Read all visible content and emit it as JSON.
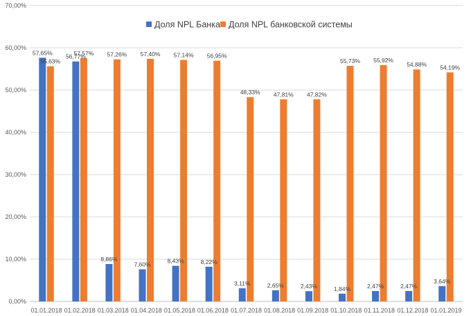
{
  "chart_data": {
    "type": "bar",
    "categories": [
      "01.01.2018",
      "01.02.2018",
      "01.03.2018",
      "01.04.2018",
      "01.05.2018",
      "01.06.2018",
      "01.07.2018",
      "01.08.2018",
      "01.09.2018",
      "01.10.2018",
      "01.11.2018",
      "01.12.2018",
      "01.01.2019"
    ],
    "series": [
      {
        "name": "Доля NPL Банка",
        "color": "#4472C4",
        "values": [
          57.65,
          56.77,
          8.86,
          7.6,
          8.43,
          8.22,
          3.11,
          2.65,
          2.43,
          1.84,
          2.47,
          2.47,
          3.64
        ],
        "labels": [
          "57,65%",
          "56,77%",
          "8,86%",
          "7,60%",
          "8,43%",
          "8,22%",
          "3,11%",
          "2,65%",
          "2,43%",
          "1,84%",
          "2,47%",
          "2,47%",
          "3,64%"
        ]
      },
      {
        "name": "Доля NPL банковской системы",
        "color": "#ED7D31",
        "values": [
          55.63,
          57.57,
          57.26,
          57.4,
          57.14,
          56.95,
          48.33,
          47.81,
          47.82,
          55.73,
          55.92,
          54.88,
          54.19
        ],
        "labels": [
          "55,63%",
          "57,57%",
          "57,26%",
          "57,40%",
          "57,14%",
          "56,95%",
          "48,33%",
          "47,81%",
          "47,82%",
          "55,73%",
          "55,92%",
          "54,88%",
          "54,19%"
        ]
      }
    ],
    "yticks": [
      0,
      10,
      20,
      30,
      40,
      50,
      60,
      70
    ],
    "ytick_labels": [
      "0,00%",
      "10,00%",
      "20,00%",
      "30,00%",
      "40,00%",
      "50,00%",
      "60,00%",
      "70,00%"
    ],
    "ylim": [
      0,
      70
    ],
    "title": "",
    "xlabel": "",
    "ylabel": "",
    "grid": true,
    "legend_position": "top"
  }
}
